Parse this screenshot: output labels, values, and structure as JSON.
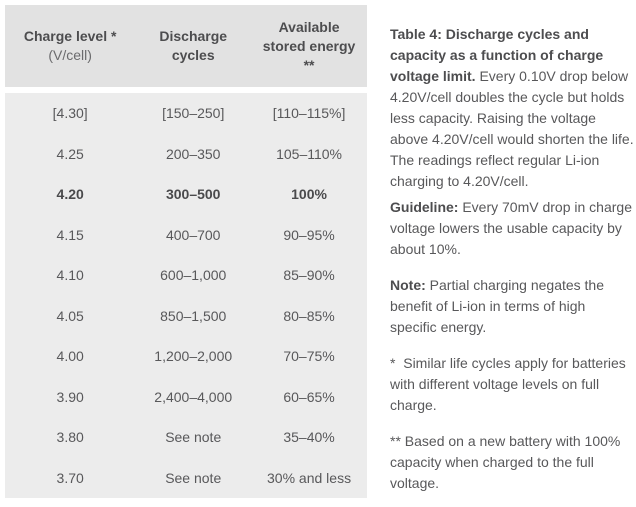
{
  "colors": {
    "header_bg": "#e2e2e2",
    "body_bg": "#ececec",
    "text": "#58585a",
    "text_bold": "#4d4d4f",
    "page_bg": "#ffffff"
  },
  "table": {
    "header": {
      "charge_line1": "Charge level *",
      "charge_line2": "(V/cell)",
      "cycles_line1": "Discharge",
      "cycles_line2": "cycles",
      "energy_line1": "Available",
      "energy_line2": "stored energy",
      "energy_line3": "**"
    },
    "rows": [
      {
        "charge": "[4.30]",
        "cycles": "[150–250]",
        "energy": "[110–115%]",
        "emphasis": false
      },
      {
        "charge": "4.25",
        "cycles": "200–350",
        "energy": "105–110%",
        "emphasis": false
      },
      {
        "charge": "4.20",
        "cycles": "300–500",
        "energy": "100%",
        "emphasis": true
      },
      {
        "charge": "4.15",
        "cycles": "400–700",
        "energy": "90–95%",
        "emphasis": false
      },
      {
        "charge": "4.10",
        "cycles": "600–1,000",
        "energy": "85–90%",
        "emphasis": false
      },
      {
        "charge": "4.05",
        "cycles": "850–1,500",
        "energy": "80–85%",
        "emphasis": false
      },
      {
        "charge": "4.00",
        "cycles": "1,200–2,000",
        "energy": "70–75%",
        "emphasis": false
      },
      {
        "charge": "3.90",
        "cycles": "2,400–4,000",
        "energy": "60–65%",
        "emphasis": false
      },
      {
        "charge": "3.80",
        "cycles": "See note",
        "energy": "35–40%",
        "emphasis": false
      },
      {
        "charge": "3.70",
        "cycles": "See note",
        "energy": "30% and less",
        "emphasis": false
      }
    ]
  },
  "notes": {
    "paragraphs": [
      {
        "lead": "Table 4: Discharge cycles and capacity as a function of charge voltage limit.",
        "body": " Every 0.10V drop below 4.20V/cell doubles the cycle but holds less capacity. Raising the voltage above 4.20V/cell would shorten the life. The readings reflect regular Li-ion charging to 4.20V/cell."
      },
      {
        "lead": "Guideline:",
        "body": " Every 70mV drop in charge voltage lowers the usable capacity by about 10%."
      },
      {
        "lead": "Note:",
        "body": " Partial charging negates the benefit of Li-ion in terms of high specific energy."
      },
      {
        "lead": "",
        "body": "*  Similar life cycles apply for batteries with different voltage levels on full charge."
      },
      {
        "lead": "",
        "body": "** Based on a new battery with 100% capacity when charged to the full voltage."
      }
    ]
  }
}
